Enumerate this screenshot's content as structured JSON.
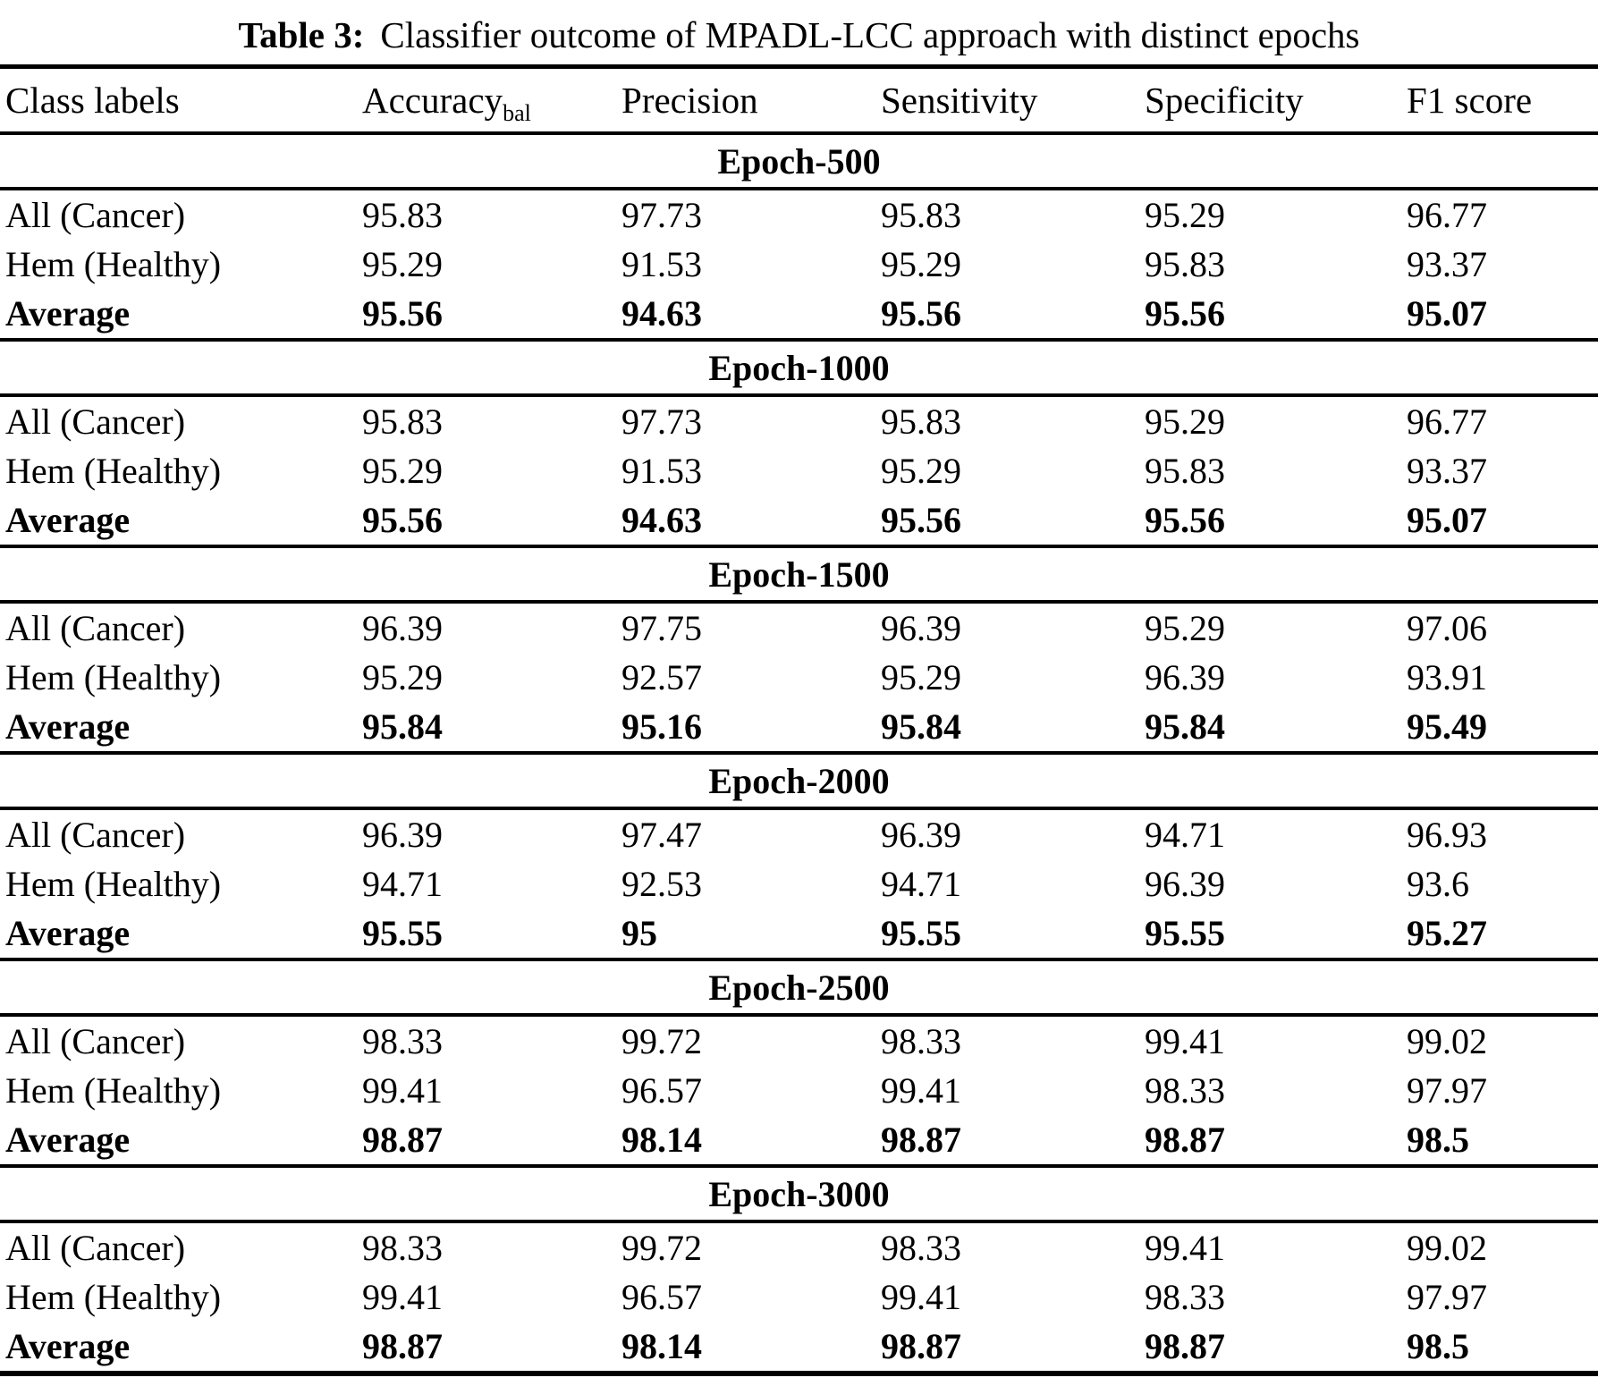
{
  "title": {
    "label": "Table 3:",
    "caption": "Classifier outcome of MPADL-LCC approach with distinct epochs"
  },
  "columns": [
    {
      "label": "Class labels"
    },
    {
      "label": "Accuracy",
      "sub": "bal"
    },
    {
      "label": "Precision"
    },
    {
      "label": "Sensitivity"
    },
    {
      "label": "Specificity"
    },
    {
      "label": "F1 score"
    }
  ],
  "sections": [
    {
      "epoch": "Epoch-500",
      "rows": [
        {
          "label": "All (Cancer)",
          "values": [
            "95.83",
            "97.73",
            "95.83",
            "95.29",
            "96.77"
          ]
        },
        {
          "label": "Hem (Healthy)",
          "values": [
            "95.29",
            "91.53",
            "95.29",
            "95.83",
            "93.37"
          ]
        },
        {
          "label": "Average",
          "values": [
            "95.56",
            "94.63",
            "95.56",
            "95.56",
            "95.07"
          ]
        }
      ]
    },
    {
      "epoch": "Epoch-1000",
      "rows": [
        {
          "label": "All (Cancer)",
          "values": [
            "95.83",
            "97.73",
            "95.83",
            "95.29",
            "96.77"
          ]
        },
        {
          "label": "Hem (Healthy)",
          "values": [
            "95.29",
            "91.53",
            "95.29",
            "95.83",
            "93.37"
          ]
        },
        {
          "label": "Average",
          "values": [
            "95.56",
            "94.63",
            "95.56",
            "95.56",
            "95.07"
          ]
        }
      ]
    },
    {
      "epoch": "Epoch-1500",
      "rows": [
        {
          "label": "All (Cancer)",
          "values": [
            "96.39",
            "97.75",
            "96.39",
            "95.29",
            "97.06"
          ]
        },
        {
          "label": "Hem (Healthy)",
          "values": [
            "95.29",
            "92.57",
            "95.29",
            "96.39",
            "93.91"
          ]
        },
        {
          "label": "Average",
          "values": [
            "95.84",
            "95.16",
            "95.84",
            "95.84",
            "95.49"
          ]
        }
      ]
    },
    {
      "epoch": "Epoch-2000",
      "rows": [
        {
          "label": "All (Cancer)",
          "values": [
            "96.39",
            "97.47",
            "96.39",
            "94.71",
            "96.93"
          ]
        },
        {
          "label": "Hem (Healthy)",
          "values": [
            "94.71",
            "92.53",
            "94.71",
            "96.39",
            "93.6"
          ]
        },
        {
          "label": "Average",
          "values": [
            "95.55",
            "95",
            "95.55",
            "95.55",
            "95.27"
          ]
        }
      ]
    },
    {
      "epoch": "Epoch-2500",
      "rows": [
        {
          "label": "All (Cancer)",
          "values": [
            "98.33",
            "99.72",
            "98.33",
            "99.41",
            "99.02"
          ]
        },
        {
          "label": "Hem (Healthy)",
          "values": [
            "99.41",
            "96.57",
            "99.41",
            "98.33",
            "97.97"
          ]
        },
        {
          "label": "Average",
          "values": [
            "98.87",
            "98.14",
            "98.87",
            "98.87",
            "98.5"
          ]
        }
      ]
    },
    {
      "epoch": "Epoch-3000",
      "rows": [
        {
          "label": "All (Cancer)",
          "values": [
            "98.33",
            "99.72",
            "98.33",
            "99.41",
            "99.02"
          ]
        },
        {
          "label": "Hem (Healthy)",
          "values": [
            "99.41",
            "96.57",
            "99.41",
            "98.33",
            "97.97"
          ]
        },
        {
          "label": "Average",
          "values": [
            "98.87",
            "98.14",
            "98.87",
            "98.87",
            "98.5"
          ]
        }
      ]
    }
  ],
  "colors": {
    "text": "#000000",
    "background": "#ffffff",
    "rule": "#000000"
  }
}
